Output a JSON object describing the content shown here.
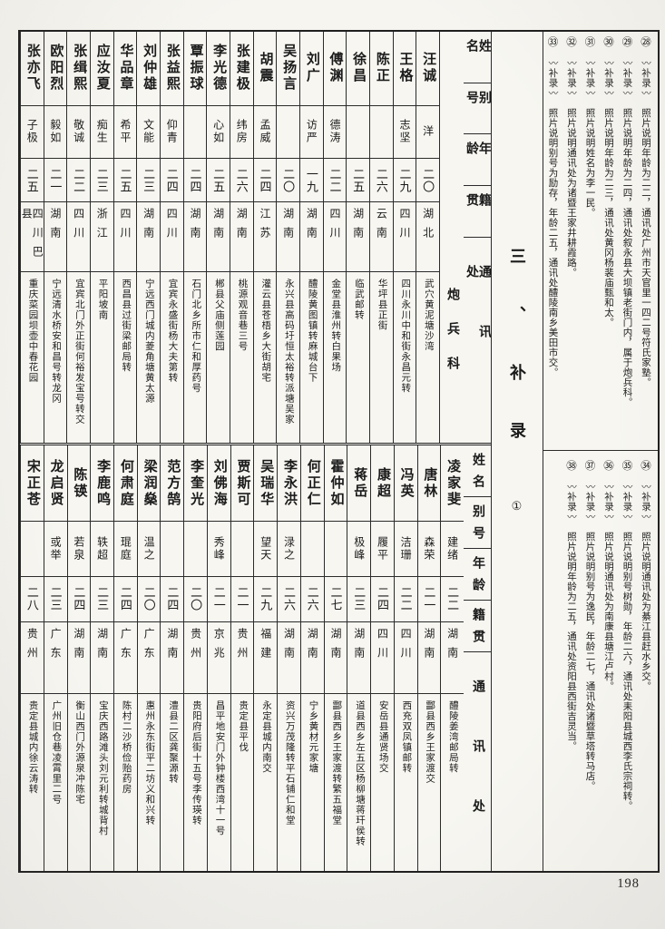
{
  "page": {
    "number": "198",
    "section_title": "三、补录",
    "section_circle": "①"
  },
  "header_labels": {
    "name": "姓名",
    "alias": "别号",
    "age": "年龄",
    "native": "籍贯",
    "contact": "通讯处",
    "branch": "炮兵科"
  },
  "top_table": {
    "entries": [
      {
        "name": "汪诚",
        "alias": "洋",
        "age": "二〇",
        "native": "湖北",
        "address": "武穴黄泥塘沙湾"
      },
      {
        "name": "王格",
        "alias": "志坚",
        "age": "二九",
        "native": "四川",
        "address": "四川永川中和街永昌元转"
      },
      {
        "name": "陈正",
        "alias": "",
        "age": "二六",
        "native": "云南",
        "address": "华坪县正街"
      },
      {
        "name": "徐昌",
        "alias": "",
        "age": "二五",
        "native": "湖南",
        "address": "临武邮转"
      },
      {
        "name": "傅渊",
        "alias": "德涛",
        "age": "二二",
        "native": "四川",
        "address": "金堂县淮州转白果场"
      },
      {
        "name": "刘广",
        "alias": "访严",
        "age": "一九",
        "native": "湖南",
        "address": "醴陵黄图镇转麻城台下"
      },
      {
        "name": "吴扬言",
        "alias": "",
        "age": "二〇",
        "native": "湖南",
        "address": "永兴县高码圩恒太裕转派塘吴家"
      },
      {
        "name": "胡震",
        "alias": "孟威",
        "age": "二四",
        "native": "江苏",
        "address": "灌云县苍梧乡大街胡宅"
      },
      {
        "name": "张建极",
        "alias": "纬房",
        "age": "二六",
        "native": "湖南",
        "address": "桃源观音巷三号"
      },
      {
        "name": "李光德",
        "alias": "心如",
        "age": "二五",
        "native": "湖南",
        "address": "郴县父庙侧莲园"
      },
      {
        "name": "覃振球",
        "alias": "",
        "age": "二四",
        "native": "湖南",
        "address": "石门北乡所市仁和厚药号"
      },
      {
        "name": "张益熙",
        "alias": "仰青",
        "age": "二四",
        "native": "四川",
        "address": "宜宾永盛街杨大夫第转"
      },
      {
        "name": "刘仲雄",
        "alias": "文能",
        "age": "二三",
        "native": "湖南",
        "address": "宁远西门城内菱角塘黄太源"
      },
      {
        "name": "华品章",
        "alias": "希平",
        "age": "二五",
        "native": "四川",
        "address": "西昌县过街梁邮局转"
      },
      {
        "name": "应汝夏",
        "alias": "痴生",
        "age": "二三",
        "native": "浙江",
        "address": "平阳坡南"
      },
      {
        "name": "张缉熙",
        "alias": "敬诚",
        "age": "二二",
        "native": "四川",
        "address": "宜宾北门外正街何裕发宝号转交"
      },
      {
        "name": "欧阳烈",
        "alias": "毅如",
        "age": "二一",
        "native": "湖南",
        "address": "宁远清水桥安和昌号转龙冈"
      },
      {
        "name": "张亦飞",
        "alias": "子极",
        "age": "二五",
        "native": "四川巴县",
        "address": "重庆菜园坝壶中春花园"
      }
    ]
  },
  "bottom_table": {
    "entries": [
      {
        "name": "凌家斐",
        "alias": "建绪",
        "age": "二二",
        "native": "湖南",
        "address": "醴陵姜湾邮局转"
      },
      {
        "name": "唐林",
        "alias": "森荣",
        "age": "二一",
        "native": "湖南",
        "address": "酃县西乡王家渡交"
      },
      {
        "name": "冯英",
        "alias": "洁珊",
        "age": "二二",
        "native": "四川",
        "address": "西充双凤镇邮转"
      },
      {
        "name": "康超",
        "alias": "履平",
        "age": "二四",
        "native": "四川",
        "address": "安岳县通贤场交"
      },
      {
        "name": "蒋岳",
        "alias": "极峰",
        "age": "二三",
        "native": "湖南",
        "address": "道县西乡左五区杨柳塘蒋玕侯转"
      },
      {
        "name": "霍仲如",
        "alias": "",
        "age": "二七",
        "native": "湖南",
        "address": "酃县西乡王家渡转繁五福堂"
      },
      {
        "name": "何正仁",
        "alias": "",
        "age": "二六",
        "native": "湖南",
        "address": "宁乡黄材元家塘"
      },
      {
        "name": "李永洪",
        "alias": "渌之",
        "age": "二六",
        "native": "湖南",
        "address": "资兴万茂隆转平石铺仁和堂"
      },
      {
        "name": "吴瑞华",
        "alias": "望天",
        "age": "二九",
        "native": "福建",
        "address": "永定县城内南交"
      },
      {
        "name": "贾斯可",
        "alias": "",
        "age": "二一",
        "native": "贵州",
        "address": "贵定县平伐"
      },
      {
        "name": "刘佛海",
        "alias": "秀峰",
        "age": "二一",
        "native": "京兆",
        "address": "昌平地安门外钟楼西湾十一号"
      },
      {
        "name": "李奎光",
        "alias": "",
        "age": "二〇",
        "native": "贵州",
        "address": "贵阳府后街十五号李传瑛转"
      },
      {
        "name": "范方鹄",
        "alias": "",
        "age": "二四",
        "native": "湖南",
        "address": "澧县二区龚聚源转"
      },
      {
        "name": "梁润燊",
        "alias": "温之",
        "age": "二〇",
        "native": "广东",
        "address": "惠州永东街平二坊义和兴转"
      },
      {
        "name": "何肃庭",
        "alias": "琨庭",
        "age": "二四",
        "native": "广东",
        "address": "陈村二沙桥俭贻药房"
      },
      {
        "name": "李鹿鸣",
        "alias": "轶超",
        "age": "二三",
        "native": "湖南",
        "address": "宝庆西路滩头刘元利转城背村"
      },
      {
        "name": "陈锳",
        "alias": "若泉",
        "age": "二四",
        "native": "湖南",
        "address": "衡山西门外源泉冲陈宅"
      },
      {
        "name": "龙启贤",
        "alias": "或举",
        "age": "二三",
        "native": "广东",
        "address": "广州旧仓巷凌霄里二号"
      },
      {
        "name": "宋正苍",
        "alias": "",
        "age": "二八",
        "native": "贵州",
        "address": "贵定县城内徐云涛转"
      }
    ]
  },
  "notes_top": [
    {
      "num": "㉘",
      "label": "〰补录〰",
      "text": "照片说明年龄为二二，通讯处广州市天官里一四二号符氏家塾。"
    },
    {
      "num": "㉙",
      "label": "〰补录〰",
      "text": "照片说明年龄为二四，通讯处叙永县大坝镇老街门内，属于炮兵科。"
    },
    {
      "num": "㉚",
      "label": "〰补录〰",
      "text": "照片说明年龄为二三，通讯处黄冈杨裴庙甄和太。"
    },
    {
      "num": "㉛",
      "label": "〰补录〰",
      "text": "照片说明姓名为李一民。"
    },
    {
      "num": "㉜",
      "label": "〰补录〰",
      "text": "照片说明通讯处为诸暨王家井耕霞路。"
    },
    {
      "num": "㉝",
      "label": "〰补录〰",
      "text": "照片说明别号为励存，年龄二五，通讯处醴陵南乡美田市交。"
    }
  ],
  "notes_bottom": [
    {
      "num": "㉞",
      "label": "〰补录〰",
      "text": "照片说明通讯处为綦江县赶水乡交。"
    },
    {
      "num": "㉟",
      "label": "〰补录〰",
      "text": "照片说明别号树勋，年龄二六，通讯处耒阳县城西李氏宗祠转。"
    },
    {
      "num": "㊱",
      "label": "〰补录〰",
      "text": "照片说明通讯处为南康县塘江卢村。"
    },
    {
      "num": "㊲",
      "label": "〰补录〰",
      "text": "照片说明别号为逸民，年龄二七，通讯处诸暨草塔转马店。"
    },
    {
      "num": "㊳",
      "label": "〰补录〰",
      "text": "照片说明年龄为二五，通讯处资阳县西街吉灵当。"
    }
  ]
}
